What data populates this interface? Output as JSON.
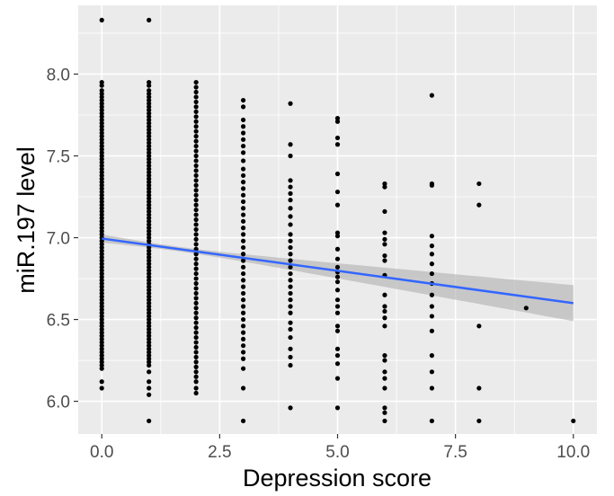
{
  "chart_data": {
    "type": "scatter",
    "title": "",
    "xlabel": "Depression score",
    "ylabel": "miR.197 level",
    "xlim": [
      -0.5,
      10.5
    ],
    "ylim": [
      5.8,
      8.42
    ],
    "x_ticks": [
      {
        "value": 0,
        "label": "0.0"
      },
      {
        "value": 2.5,
        "label": "2.5"
      },
      {
        "value": 5,
        "label": "5.0"
      },
      {
        "value": 7.5,
        "label": "7.5"
      },
      {
        "value": 10,
        "label": "10.0"
      }
    ],
    "y_ticks": [
      {
        "value": 6.0,
        "label": "6.0"
      },
      {
        "value": 6.5,
        "label": "6.5"
      },
      {
        "value": 7.0,
        "label": "7.0"
      },
      {
        "value": 7.5,
        "label": "7.5"
      },
      {
        "value": 8.0,
        "label": "8.0"
      }
    ],
    "grid": true,
    "legend": "none",
    "colors": {
      "panel": "#ebebeb",
      "grid": "#ffffff",
      "points": "#000000",
      "fit_line": "#3366ff",
      "confidence_band": "#b3b3b3"
    },
    "points": [
      {
        "x": 0,
        "y": [
          8.33,
          7.95,
          7.93,
          7.9,
          7.88,
          7.86,
          7.84,
          7.82,
          7.8,
          7.78,
          7.76,
          7.74,
          7.72,
          7.7,
          7.68,
          7.66,
          7.64,
          7.62,
          7.6,
          7.58,
          7.56,
          7.54,
          7.52,
          7.5,
          7.48,
          7.46,
          7.44,
          7.42,
          7.4,
          7.38,
          7.36,
          7.34,
          7.32,
          7.3,
          7.28,
          7.26,
          7.24,
          7.22,
          7.2,
          7.18,
          7.16,
          7.14,
          7.12,
          7.1,
          7.08,
          7.06,
          7.04,
          7.02,
          7.0,
          6.98,
          6.96,
          6.94,
          6.92,
          6.9,
          6.88,
          6.86,
          6.84,
          6.82,
          6.8,
          6.78,
          6.76,
          6.74,
          6.72,
          6.7,
          6.68,
          6.66,
          6.64,
          6.62,
          6.6,
          6.58,
          6.56,
          6.54,
          6.52,
          6.5,
          6.48,
          6.46,
          6.44,
          6.42,
          6.4,
          6.38,
          6.36,
          6.34,
          6.32,
          6.3,
          6.28,
          6.26,
          6.24,
          6.22,
          6.2,
          6.12,
          6.08
        ]
      },
      {
        "x": 1,
        "y": [
          8.33,
          7.95,
          7.93,
          7.9,
          7.88,
          7.86,
          7.84,
          7.82,
          7.8,
          7.78,
          7.76,
          7.74,
          7.72,
          7.7,
          7.68,
          7.66,
          7.64,
          7.62,
          7.6,
          7.58,
          7.56,
          7.54,
          7.52,
          7.5,
          7.48,
          7.46,
          7.44,
          7.42,
          7.4,
          7.38,
          7.36,
          7.34,
          7.32,
          7.3,
          7.28,
          7.26,
          7.24,
          7.22,
          7.2,
          7.18,
          7.16,
          7.14,
          7.12,
          7.1,
          7.08,
          7.06,
          7.04,
          7.02,
          7.0,
          6.98,
          6.96,
          6.94,
          6.92,
          6.9,
          6.88,
          6.86,
          6.84,
          6.82,
          6.8,
          6.78,
          6.76,
          6.74,
          6.72,
          6.7,
          6.68,
          6.66,
          6.64,
          6.62,
          6.6,
          6.58,
          6.56,
          6.54,
          6.52,
          6.5,
          6.48,
          6.46,
          6.44,
          6.42,
          6.4,
          6.38,
          6.36,
          6.34,
          6.32,
          6.3,
          6.28,
          6.26,
          6.24,
          6.22,
          6.18,
          6.12,
          6.08,
          6.04,
          5.88
        ]
      },
      {
        "x": 2,
        "y": [
          7.95,
          7.92,
          7.89,
          7.86,
          7.83,
          7.8,
          7.77,
          7.74,
          7.71,
          7.68,
          7.65,
          7.62,
          7.59,
          7.56,
          7.53,
          7.5,
          7.47,
          7.44,
          7.41,
          7.38,
          7.35,
          7.32,
          7.29,
          7.26,
          7.23,
          7.2,
          7.17,
          7.14,
          7.11,
          7.08,
          7.05,
          7.02,
          6.99,
          6.96,
          6.93,
          6.9,
          6.87,
          6.84,
          6.81,
          6.78,
          6.75,
          6.72,
          6.69,
          6.66,
          6.63,
          6.6,
          6.57,
          6.54,
          6.51,
          6.48,
          6.45,
          6.42,
          6.39,
          6.36,
          6.33,
          6.3,
          6.27,
          6.24,
          6.21,
          6.18,
          6.15,
          6.12,
          6.08,
          6.05
        ]
      },
      {
        "x": 3,
        "y": [
          7.84,
          7.8,
          7.72,
          7.68,
          7.64,
          7.6,
          7.56,
          7.52,
          7.47,
          7.42,
          7.38,
          7.34,
          7.3,
          7.26,
          7.22,
          7.18,
          7.14,
          7.1,
          7.06,
          7.02,
          6.98,
          6.94,
          6.9,
          6.86,
          6.82,
          6.78,
          6.74,
          6.7,
          6.66,
          6.62,
          6.58,
          6.54,
          6.5,
          6.46,
          6.42,
          6.38,
          6.34,
          6.3,
          6.26,
          6.2,
          6.08,
          5.88
        ]
      },
      {
        "x": 4,
        "y": [
          7.82,
          7.57,
          7.5,
          7.35,
          7.31,
          7.27,
          7.23,
          7.18,
          7.13,
          7.08,
          7.02,
          6.98,
          6.94,
          6.9,
          6.86,
          6.82,
          6.78,
          6.74,
          6.7,
          6.66,
          6.62,
          6.58,
          6.54,
          6.48,
          6.44,
          6.39,
          6.32,
          6.27,
          6.22,
          5.96
        ]
      },
      {
        "x": 5,
        "y": [
          7.73,
          7.71,
          7.61,
          7.57,
          7.39,
          7.28,
          7.2,
          7.03,
          7.01,
          6.93,
          6.87,
          6.82,
          6.79,
          6.76,
          6.73,
          6.68,
          6.62,
          6.58,
          6.54,
          6.46,
          6.43,
          6.32,
          6.28,
          6.23,
          6.14,
          5.96
        ]
      },
      {
        "x": 6,
        "y": [
          7.33,
          7.31,
          7.16,
          7.03,
          6.99,
          6.96,
          6.89,
          6.86,
          6.77,
          6.65,
          6.58,
          6.55,
          6.51,
          6.46,
          6.28,
          6.25,
          6.18,
          6.14,
          6.08,
          5.96,
          5.93,
          5.88
        ]
      },
      {
        "x": 7,
        "y": [
          7.87,
          7.33,
          7.32,
          7.01,
          6.95,
          6.9,
          6.84,
          6.78,
          6.72,
          6.65,
          6.58,
          6.52,
          6.43,
          6.28,
          6.18,
          6.08,
          5.88
        ]
      },
      {
        "x": 8,
        "y": [
          7.33,
          7.2,
          6.46,
          6.08,
          5.88
        ]
      },
      {
        "x": 9,
        "y": [
          6.57
        ]
      },
      {
        "x": 10,
        "y": [
          5.88
        ]
      }
    ],
    "fit": {
      "method": "linear",
      "x": [
        0,
        10
      ],
      "y": [
        6.995,
        6.6
      ],
      "band_lower": [
        6.97,
        6.49
      ],
      "band_upper": [
        7.02,
        6.71
      ]
    }
  }
}
